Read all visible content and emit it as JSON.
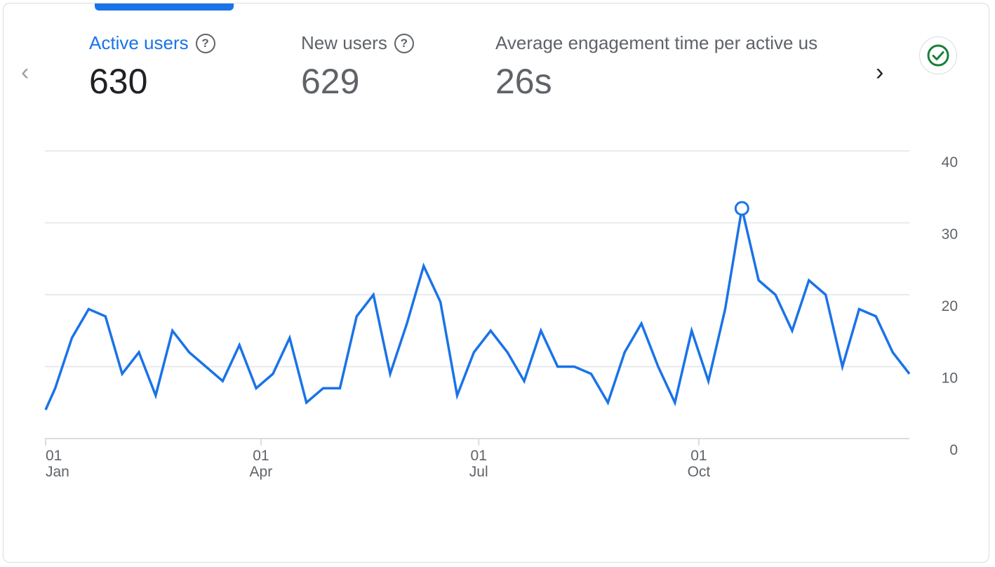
{
  "tabs": [
    {
      "label": "Active users",
      "value": "630",
      "help_icon": "help-circle-icon",
      "selected": true
    },
    {
      "label": "New users",
      "value": "629",
      "help_icon": "help-circle-icon"
    },
    {
      "label": "Average engagement time per active us",
      "value": "26s"
    }
  ],
  "nav": {
    "prev_icon": "chevron-left-icon",
    "next_icon": "chevron-right-icon"
  },
  "status": {
    "icon": "check-circle-icon",
    "color": "#188038"
  },
  "colors": {
    "accent": "#1a73e8",
    "line": "#1a73e8"
  },
  "chart_data": {
    "type": "line",
    "x_ticks": [
      {
        "date": "01-01",
        "day": "01",
        "month": "Jan"
      },
      {
        "date": "04-01",
        "day": "01",
        "month": "Apr"
      },
      {
        "date": "07-01",
        "day": "01",
        "month": "Jul"
      },
      {
        "date": "10-01",
        "day": "01",
        "month": "Oct"
      }
    ],
    "y_ticks": [
      0,
      10,
      20,
      30,
      40
    ],
    "ylim": [
      0,
      40
    ],
    "grid": true,
    "y_axis_side": "right",
    "highlighted_point": "10-19",
    "series": [
      {
        "x": [
          "01-01",
          "01-05",
          "01-12",
          "01-19",
          "01-26",
          "02-02",
          "02-09",
          "02-16",
          "02-23",
          "03-02",
          "03-09",
          "03-16",
          "03-23",
          "03-30",
          "04-06",
          "04-13",
          "04-20",
          "04-27",
          "05-04",
          "05-11",
          "05-18",
          "05-25",
          "06-01",
          "06-08",
          "06-15",
          "06-22",
          "06-29",
          "07-06",
          "07-13",
          "07-20",
          "07-27",
          "08-03",
          "08-10",
          "08-17",
          "08-24",
          "08-31",
          "09-07",
          "09-14",
          "09-21",
          "09-28",
          "10-05",
          "10-12",
          "10-19",
          "10-26",
          "11-02",
          "11-09",
          "11-16",
          "11-23",
          "11-30",
          "12-07",
          "12-14",
          "12-21",
          "12-28"
        ],
        "values": [
          4,
          7,
          14,
          18,
          17,
          9,
          12,
          6,
          15,
          12,
          10,
          8,
          13,
          7,
          9,
          14,
          5,
          7,
          7,
          17,
          20,
          9,
          16,
          24,
          19,
          6,
          12,
          15,
          12,
          8,
          15,
          10,
          10,
          9,
          5,
          12,
          16,
          10,
          5,
          15,
          8,
          18,
          32,
          22,
          20,
          15,
          22,
          20,
          10,
          18,
          17,
          12,
          9
        ]
      }
    ]
  }
}
